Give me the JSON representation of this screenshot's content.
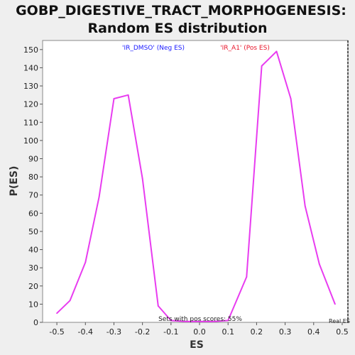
{
  "chart_data": {
    "type": "line",
    "title_line1": "GOBP_DIGESTIVE_TRACT_MORPHOGENESIS:",
    "title_line2": "Random ES distribution",
    "xlabel": "ES",
    "ylabel": "P(ES)",
    "xlim": [
      -0.55,
      0.52
    ],
    "ylim": [
      0,
      155
    ],
    "xticks": [
      -0.5,
      -0.4,
      -0.3,
      -0.2,
      -0.1,
      0.0,
      0.1,
      0.2,
      0.3,
      0.4,
      0.5
    ],
    "xtick_labels": [
      "-0.5",
      "-0.4",
      "-0.3",
      "-0.2",
      "-0.1",
      "0.0",
      "0.1",
      "0.2",
      "0.3",
      "0.4",
      "0.5"
    ],
    "yticks": [
      0,
      10,
      20,
      30,
      40,
      50,
      60,
      70,
      80,
      90,
      100,
      110,
      120,
      130,
      140,
      150
    ],
    "ytick_labels": [
      "0",
      "10",
      "20",
      "30",
      "40",
      "50",
      "60",
      "70",
      "80",
      "90",
      "100",
      "110",
      "120",
      "130",
      "140",
      "150"
    ],
    "legend": {
      "neg": "'IR_DMSO' (Neg ES)",
      "pos": "'IR_A1' (Pos ES)"
    },
    "annotation": "Sets with pos scores: 55%",
    "real_es_label": "Real ES",
    "real_es": 0.52,
    "series": [
      {
        "color": "#e83cf0",
        "x": [
          -0.5,
          -0.454,
          -0.4,
          -0.352,
          -0.3,
          -0.25,
          -0.2,
          -0.145,
          -0.1,
          -0.05,
          0.0,
          0.05,
          0.1,
          0.165,
          0.218,
          0.27,
          0.32,
          0.37,
          0.42,
          0.475
        ],
        "y": [
          5,
          12,
          33,
          69,
          123,
          125,
          79,
          9,
          1,
          0.5,
          0.5,
          0.5,
          1,
          25,
          141,
          149,
          123,
          64,
          32,
          10
        ]
      }
    ],
    "colors": {
      "background": "#efefef",
      "plot_bg": "#ffffff",
      "line": "#e83cf0"
    }
  }
}
